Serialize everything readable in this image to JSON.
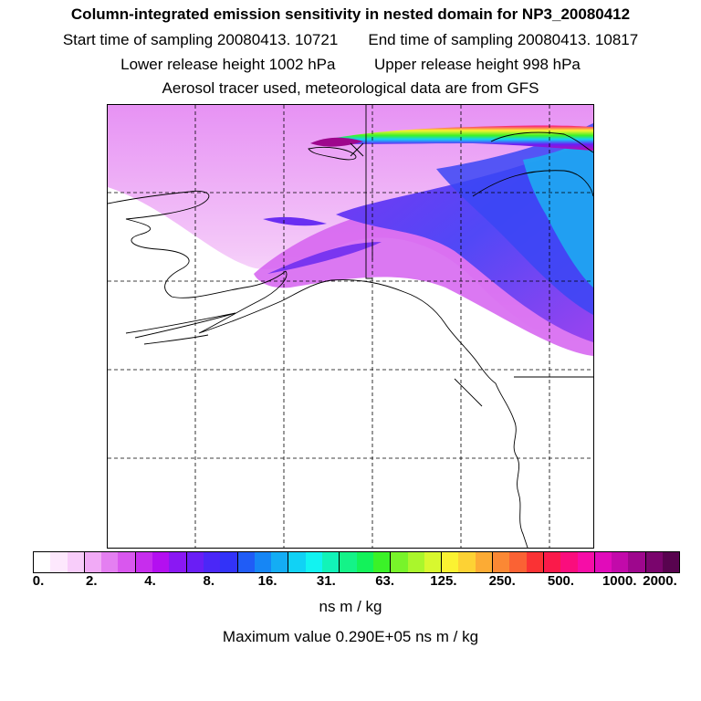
{
  "header": {
    "title": "Column-integrated emission sensitivity in nested domain for NP3_20080412",
    "start_time": "Start time of sampling 20080413. 10721",
    "end_time": "End time of sampling 20080413. 10817",
    "lower_height": "Lower release height 1002 hPa",
    "upper_height": "Upper release height  998 hPa",
    "tracer_info": "Aerosol tracer used, meteorological data are from GFS"
  },
  "colorbar": {
    "tick_labels": [
      "0.",
      "2.",
      "4.",
      "8.",
      "16.",
      "31.",
      "63.",
      "125.",
      "250.",
      "500.",
      "1000.",
      "2000."
    ],
    "colors": [
      "#ffffff",
      "#fde8fd",
      "#f8cdfa",
      "#f1aaf6",
      "#e47ff1",
      "#d957ee",
      "#c72ded",
      "#b40ff0",
      "#8a18f3",
      "#6a1ef5",
      "#4b27f7",
      "#3233f8",
      "#205cf6",
      "#1686f5",
      "#14adf4",
      "#11d2f5",
      "#12f3f1",
      "#12f3b8",
      "#14f388",
      "#13f25a",
      "#3bf228",
      "#78f42a",
      "#aaf62c",
      "#d8f82f",
      "#fbf232",
      "#fdd234",
      "#fcab34",
      "#fb8834",
      "#fa6234",
      "#fa3234",
      "#fa1a4a",
      "#fa0d7d",
      "#f60da7",
      "#e10bba",
      "#c20aaa",
      "#9e078d",
      "#7a056d",
      "#58034f"
    ]
  },
  "units": "ns m / kg",
  "maximum_value": "Maximum value  0.290E+05 ns m / kg",
  "map": {
    "region": "Alaska, western Canada and Pacific Northwest",
    "grid": "dashed lat/lon grid"
  }
}
